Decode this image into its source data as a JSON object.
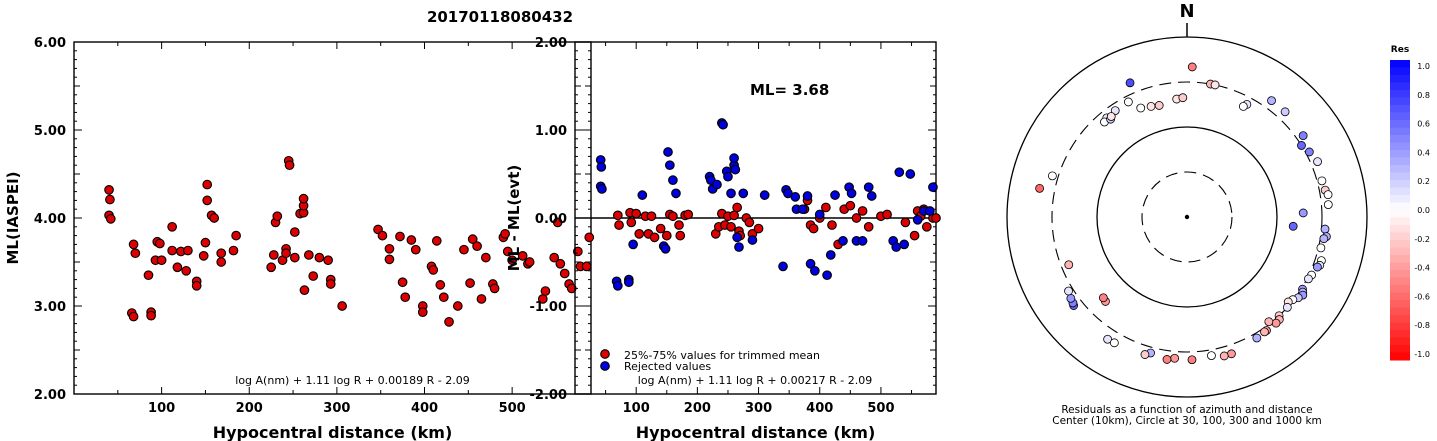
{
  "title": "20170118080432",
  "colors": {
    "red_point": "#dc0000",
    "blue_point": "#0000dc",
    "outline": "#000000"
  },
  "chart_data": [
    {
      "type": "scatter",
      "id": "ml-vs-distance",
      "xlabel": "Hypocentral distance (km)",
      "ylabel": "ML(IASPEI)",
      "xlim": [
        0,
        590
      ],
      "ylim": [
        2.0,
        6.0
      ],
      "x_ticks": [
        100,
        200,
        300,
        400,
        500
      ],
      "y_ticks": [
        "2.00",
        "3.00",
        "4.00",
        "5.00",
        "6.00"
      ],
      "formula": "log A(nm) + 1.11 log R + 0.00189 R - 2.09",
      "points": [
        [
          40,
          4.32
        ],
        [
          41,
          4.21
        ],
        [
          40,
          4.03
        ],
        [
          42,
          3.99
        ],
        [
          68,
          3.7
        ],
        [
          70,
          3.6
        ],
        [
          66,
          2.92
        ],
        [
          68,
          2.88
        ],
        [
          88,
          2.93
        ],
        [
          88,
          2.89
        ],
        [
          85,
          3.35
        ],
        [
          95,
          3.73
        ],
        [
          98,
          3.71
        ],
        [
          93,
          3.52
        ],
        [
          100,
          3.52
        ],
        [
          112,
          3.9
        ],
        [
          112,
          3.63
        ],
        [
          118,
          3.44
        ],
        [
          122,
          3.62
        ],
        [
          130,
          3.63
        ],
        [
          128,
          3.4
        ],
        [
          140,
          3.28
        ],
        [
          140,
          3.23
        ],
        [
          148,
          3.57
        ],
        [
          150,
          3.72
        ],
        [
          152,
          4.38
        ],
        [
          152,
          4.2
        ],
        [
          157,
          4.03
        ],
        [
          160,
          4.0
        ],
        [
          168,
          3.6
        ],
        [
          168,
          3.5
        ],
        [
          182,
          3.63
        ],
        [
          185,
          3.8
        ],
        [
          225,
          3.44
        ],
        [
          228,
          3.58
        ],
        [
          230,
          3.95
        ],
        [
          232,
          4.02
        ],
        [
          238,
          3.52
        ],
        [
          242,
          3.65
        ],
        [
          242,
          3.6
        ],
        [
          245,
          4.65
        ],
        [
          246,
          4.6
        ],
        [
          252,
          3.84
        ],
        [
          252,
          3.55
        ],
        [
          258,
          4.05
        ],
        [
          262,
          4.06
        ],
        [
          262,
          4.14
        ],
        [
          262,
          4.22
        ],
        [
          263,
          3.18
        ],
        [
          268,
          3.58
        ],
        [
          273,
          3.34
        ],
        [
          280,
          3.55
        ],
        [
          290,
          3.52
        ],
        [
          293,
          3.3
        ],
        [
          293,
          3.25
        ],
        [
          306,
          3.0
        ],
        [
          347,
          3.87
        ],
        [
          352,
          3.8
        ],
        [
          360,
          3.65
        ],
        [
          360,
          3.53
        ],
        [
          372,
          3.79
        ],
        [
          375,
          3.27
        ],
        [
          378,
          3.1
        ],
        [
          385,
          3.75
        ],
        [
          390,
          3.64
        ],
        [
          398,
          3.0
        ],
        [
          398,
          2.93
        ],
        [
          408,
          3.45
        ],
        [
          410,
          3.41
        ],
        [
          414,
          3.74
        ],
        [
          418,
          3.24
        ],
        [
          422,
          3.1
        ],
        [
          428,
          2.82
        ],
        [
          438,
          3.0
        ],
        [
          445,
          3.64
        ],
        [
          452,
          3.26
        ],
        [
          455,
          3.76
        ],
        [
          460,
          3.68
        ],
        [
          465,
          3.08
        ],
        [
          470,
          3.55
        ],
        [
          478,
          3.25
        ],
        [
          480,
          3.2
        ],
        [
          490,
          3.78
        ],
        [
          492,
          3.82
        ],
        [
          495,
          3.62
        ],
        [
          500,
          3.52
        ],
        [
          512,
          3.57
        ],
        [
          518,
          3.48
        ],
        [
          520,
          3.5
        ],
        [
          535,
          3.08
        ],
        [
          538,
          3.17
        ],
        [
          548,
          3.55
        ],
        [
          552,
          3.95
        ],
        [
          555,
          3.48
        ],
        [
          560,
          3.37
        ],
        [
          565,
          3.25
        ],
        [
          568,
          3.2
        ],
        [
          575,
          3.62
        ],
        [
          578,
          3.45
        ],
        [
          585,
          3.45
        ],
        [
          588,
          3.78
        ]
      ]
    },
    {
      "type": "scatter",
      "id": "residual-vs-distance",
      "xlabel": "Hypocentral distance (km)",
      "ylabel": "ML - ML(evt)",
      "xlim": [
        0,
        590
      ],
      "ylim": [
        -2.0,
        2.0
      ],
      "x_ticks": [
        100,
        200,
        300,
        400,
        500
      ],
      "y_ticks": [
        "-2.00",
        "-1.00",
        "0.00",
        "1.00",
        "2.00"
      ],
      "annotation": "ML=  3.68",
      "formula": "log A(nm) + 1.11 log R + 0.00217 R - 2.09",
      "legend": [
        "25%-75% values for trimmed mean",
        "Rejected values"
      ],
      "red_points": [
        [
          70,
          0.03
        ],
        [
          72,
          -0.08
        ],
        [
          90,
          0.06
        ],
        [
          92,
          -0.05
        ],
        [
          100,
          0.05
        ],
        [
          105,
          -0.18
        ],
        [
          115,
          0.02
        ],
        [
          120,
          -0.18
        ],
        [
          125,
          0.02
        ],
        [
          130,
          -0.22
        ],
        [
          140,
          -0.12
        ],
        [
          150,
          -0.2
        ],
        [
          155,
          0.04
        ],
        [
          160,
          0.02
        ],
        [
          170,
          -0.08
        ],
        [
          172,
          -0.2
        ],
        [
          180,
          0.03
        ],
        [
          185,
          0.04
        ],
        [
          230,
          -0.18
        ],
        [
          235,
          -0.1
        ],
        [
          240,
          0.05
        ],
        [
          245,
          -0.08
        ],
        [
          250,
          0.02
        ],
        [
          255,
          -0.1
        ],
        [
          260,
          0.03
        ],
        [
          265,
          0.12
        ],
        [
          268,
          -0.15
        ],
        [
          270,
          -0.2
        ],
        [
          280,
          0.0
        ],
        [
          285,
          -0.05
        ],
        [
          290,
          -0.18
        ],
        [
          300,
          -0.12
        ],
        [
          375,
          0.1
        ],
        [
          380,
          0.2
        ],
        [
          385,
          -0.08
        ],
        [
          390,
          -0.12
        ],
        [
          400,
          0.0
        ],
        [
          410,
          0.12
        ],
        [
          420,
          -0.08
        ],
        [
          430,
          -0.3
        ],
        [
          440,
          0.1
        ],
        [
          450,
          0.14
        ],
        [
          460,
          0.0
        ],
        [
          470,
          0.08
        ],
        [
          480,
          -0.1
        ],
        [
          500,
          0.02
        ],
        [
          510,
          0.04
        ],
        [
          540,
          -0.05
        ],
        [
          555,
          -0.2
        ],
        [
          560,
          0.08
        ],
        [
          565,
          0.02
        ],
        [
          570,
          0.1
        ],
        [
          575,
          -0.1
        ],
        [
          585,
          0.0
        ],
        [
          590,
          0.0
        ]
      ],
      "blue_points": [
        [
          42,
          0.66
        ],
        [
          43,
          0.58
        ],
        [
          42,
          0.36
        ],
        [
          44,
          0.33
        ],
        [
          68,
          -0.72
        ],
        [
          70,
          -0.77
        ],
        [
          88,
          -0.7
        ],
        [
          88,
          -0.73
        ],
        [
          95,
          -0.3
        ],
        [
          110,
          0.26
        ],
        [
          145,
          -0.32
        ],
        [
          148,
          -0.35
        ],
        [
          152,
          0.75
        ],
        [
          155,
          0.6
        ],
        [
          160,
          0.43
        ],
        [
          165,
          0.28
        ],
        [
          220,
          0.47
        ],
        [
          222,
          0.43
        ],
        [
          225,
          0.33
        ],
        [
          232,
          0.38
        ],
        [
          240,
          1.08
        ],
        [
          242,
          1.06
        ],
        [
          248,
          0.53
        ],
        [
          250,
          0.47
        ],
        [
          255,
          0.28
        ],
        [
          260,
          0.6
        ],
        [
          260,
          0.68
        ],
        [
          262,
          0.55
        ],
        [
          265,
          -0.22
        ],
        [
          268,
          -0.33
        ],
        [
          275,
          0.28
        ],
        [
          290,
          -0.25
        ],
        [
          310,
          0.26
        ],
        [
          340,
          -0.55
        ],
        [
          345,
          0.32
        ],
        [
          348,
          0.28
        ],
        [
          360,
          0.24
        ],
        [
          362,
          0.1
        ],
        [
          372,
          0.1
        ],
        [
          380,
          0.25
        ],
        [
          385,
          -0.52
        ],
        [
          392,
          -0.6
        ],
        [
          400,
          0.04
        ],
        [
          412,
          -0.65
        ],
        [
          418,
          -0.42
        ],
        [
          425,
          0.26
        ],
        [
          438,
          -0.26
        ],
        [
          448,
          0.35
        ],
        [
          452,
          0.28
        ],
        [
          460,
          -0.26
        ],
        [
          470,
          -0.26
        ],
        [
          480,
          0.35
        ],
        [
          485,
          0.25
        ],
        [
          520,
          -0.26
        ],
        [
          525,
          -0.33
        ],
        [
          530,
          0.52
        ],
        [
          538,
          -0.3
        ],
        [
          548,
          0.5
        ],
        [
          560,
          -0.02
        ],
        [
          570,
          0.08
        ],
        [
          580,
          0.08
        ],
        [
          585,
          0.35
        ]
      ]
    },
    {
      "type": "scatter",
      "id": "residual-azimuth-polar",
      "north_label": "N",
      "caption_line1": "Residuals as a function of azimuth and distance",
      "caption_line2": "Center (10km), Circle at 30, 100, 300 and 1000 km",
      "colorbar_title": "Res",
      "colorbar_ticks": [
        "1.0",
        "0.8",
        "0.6",
        "0.4",
        "0.2",
        "0.0",
        "-0.2",
        "-0.4",
        "-0.6",
        "-0.8",
        "-1.0"
      ],
      "rings_km": [
        10,
        30,
        100,
        300,
        1000
      ],
      "stations": [
        [
          2,
          450,
          -0.5
        ],
        [
          337,
          400,
          0.7
        ],
        [
          321,
          250,
          0.1
        ],
        [
          326,
          255,
          0.1
        ],
        [
          333,
          260,
          0.0
        ],
        [
          337,
          200,
          0.0
        ],
        [
          342,
          190,
          -0.1
        ],
        [
          346,
          184,
          -0.2
        ],
        [
          355,
          200,
          -0.1
        ],
        [
          358,
          205,
          -0.2
        ],
        [
          10,
          300,
          -0.3
        ],
        [
          12,
          300,
          -0.1
        ],
        [
          28,
          250,
          0.1
        ],
        [
          27,
          230,
          0.0
        ],
        [
          36,
          380,
          0.3
        ],
        [
          43,
          380,
          0.2
        ],
        [
          55,
          360,
          0.5
        ],
        [
          58,
          300,
          0.6
        ],
        [
          62,
          330,
          0.5
        ],
        [
          67,
          360,
          0.1
        ],
        [
          75,
          340,
          0.0
        ],
        [
          79,
          350,
          -0.2
        ],
        [
          81,
          370,
          0.0
        ],
        [
          85,
          360,
          0.0
        ],
        [
          88,
          190,
          0.4
        ],
        [
          95,
          150,
          0.6
        ],
        [
          95,
          330,
          0.3
        ],
        [
          98,
          350,
          0.3
        ],
        [
          99,
          330,
          0.3
        ],
        [
          103,
          320,
          0.0
        ],
        [
          108,
          355,
          0.0
        ],
        [
          110,
          355,
          0.1
        ],
        [
          111,
          340,
          0.4
        ],
        [
          115,
          320,
          0.0
        ],
        [
          117,
          310,
          0.1
        ],
        [
          122,
          310,
          0.4
        ],
        [
          123,
          325,
          0.3
        ],
        [
          124,
          340,
          0.4
        ],
        [
          126,
          320,
          0.2
        ],
        [
          128,
          295,
          0.0
        ],
        [
          130,
          280,
          -0.1
        ],
        [
          132,
          300,
          0.1
        ],
        [
          137,
          300,
          -0.2
        ],
        [
          138,
          325,
          -0.3
        ],
        [
          140,
          330,
          -0.4
        ],
        [
          145,
          330,
          -0.4
        ],
        [
          146,
          330,
          -0.3
        ],
        [
          150,
          340,
          0.3
        ],
        [
          142,
          285,
          -0.3
        ],
        [
          162,
          380,
          -0.4
        ],
        [
          165,
          380,
          -0.3
        ],
        [
          170,
          350,
          0.0
        ],
        [
          178,
          370,
          -0.5
        ],
        [
          185,
          360,
          -0.4
        ],
        [
          188,
          380,
          -0.5
        ],
        [
          195,
          350,
          0.3
        ],
        [
          197,
          380,
          -0.2
        ],
        [
          213,
          400,
          0.1
        ],
        [
          210,
          395,
          0.0
        ],
        [
          224,
          195,
          -0.4
        ],
        [
          226,
          190,
          -0.5
        ],
        [
          232,
          380,
          0.6
        ],
        [
          233,
          370,
          0.5
        ],
        [
          235,
          360,
          0.4
        ],
        [
          238,
          340,
          0.1
        ],
        [
          248,
          250,
          -0.3
        ],
        [
          287,
          350,
          0.0
        ],
        [
          281,
          450,
          -0.6
        ],
        [
          319,
          240,
          0.0
        ],
        [
          322,
          230,
          0.2
        ],
        [
          323,
          240,
          -0.1
        ]
      ]
    }
  ]
}
